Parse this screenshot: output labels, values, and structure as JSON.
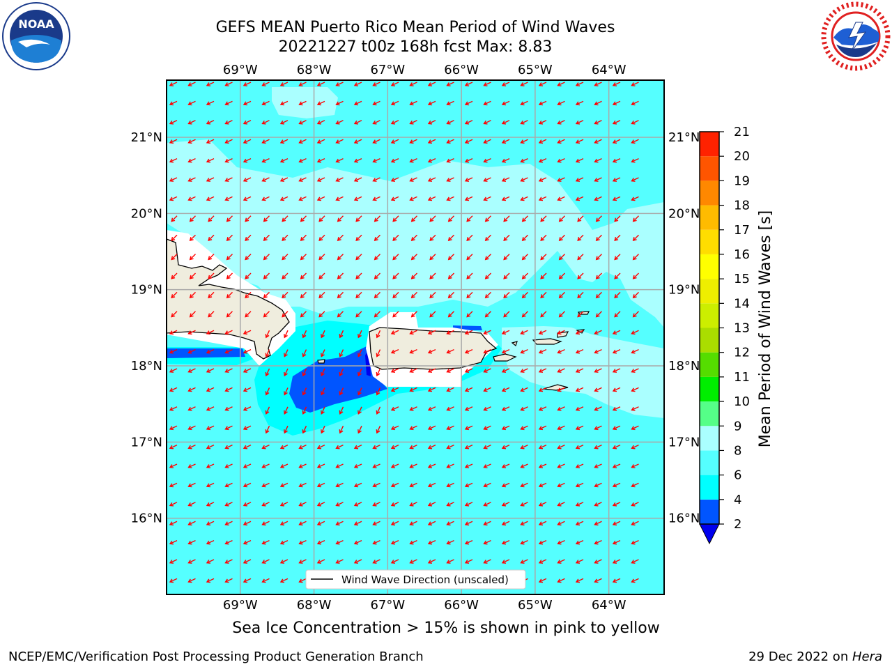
{
  "header": {
    "title_line1": "GEFS MEAN Puerto Rico Mean Period of Wind Waves",
    "title_line2": "20221227 t00z 168h fcst   Max: 8.83"
  },
  "logos": {
    "left": "noaa-logo",
    "right": "nws-logo"
  },
  "map": {
    "lon_labels": [
      "69°W",
      "68°W",
      "67°W",
      "66°W",
      "65°W",
      "64°W"
    ],
    "lat_labels": [
      "21°N",
      "20°N",
      "19°N",
      "18°N",
      "17°N",
      "16°N"
    ],
    "lon_range": [
      -70.0,
      -63.25
    ],
    "lat_range": [
      15.0,
      21.75
    ],
    "arrow_color": "#ff0000",
    "land_color": "#efedde",
    "legend_label": "Wind Wave Direction (unscaled)"
  },
  "colorbar": {
    "label": "Mean Period of Wind Waves [s]",
    "ticks": [
      "2",
      "4",
      "6",
      "8",
      "9",
      "10",
      "11",
      "12",
      "13",
      "14",
      "15",
      "16",
      "17",
      "18",
      "19",
      "20",
      "21"
    ],
    "colors": [
      "#0055ff",
      "#00ffff",
      "#55ffff",
      "#aaffff",
      "#55ff88",
      "#00ee00",
      "#55dd00",
      "#aadd00",
      "#ccee00",
      "#eeee00",
      "#ffff00",
      "#ffdd00",
      "#ffbb00",
      "#ff8800",
      "#ff5500",
      "#ff2200"
    ],
    "under_color": "#0000ee"
  },
  "bottom_note": "Sea Ice Concentration > 15% is shown in pink to yellow",
  "footer": {
    "left": "NCEP/EMC/Verification Post Processing Product Generation Branch",
    "right_prefix": "29 Dec 2022 on ",
    "right_machine": "Hera"
  }
}
